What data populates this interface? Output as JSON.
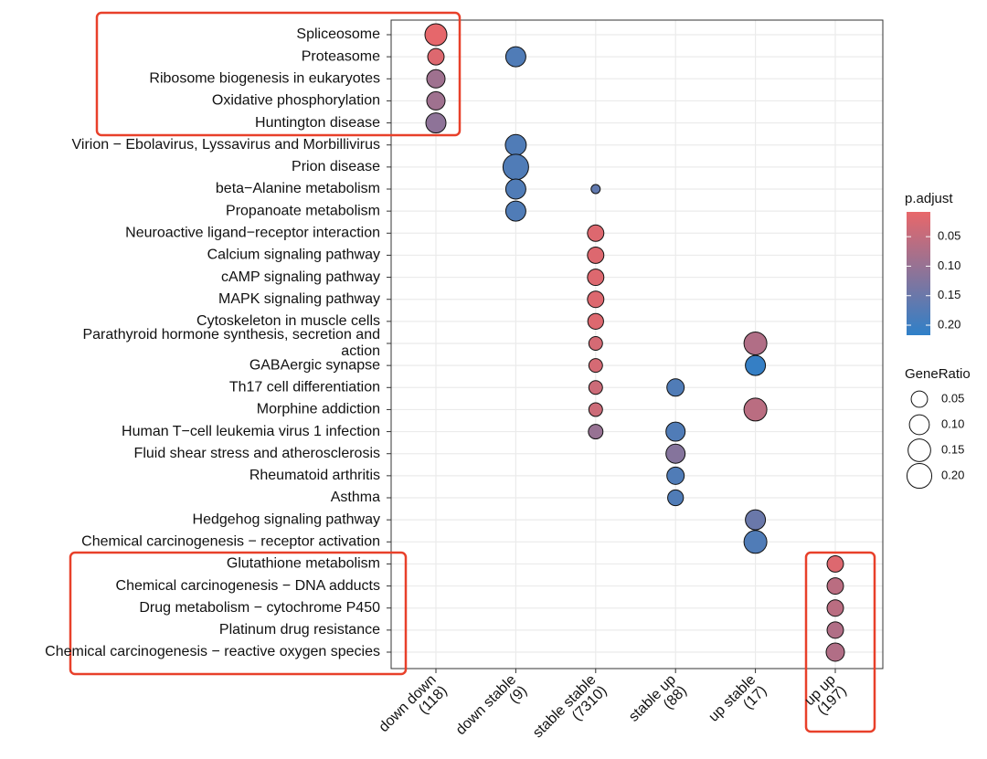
{
  "chart_data": {
    "type": "dot",
    "y_categories": [
      "Spliceosome",
      "Proteasome",
      "Ribosome biogenesis in eukaryotes",
      "Oxidative phosphorylation",
      "Huntington disease",
      "Virion − Ebolavirus, Lyssavirus and Morbillivirus",
      "Prion disease",
      "beta−Alanine metabolism",
      "Propanoate metabolism",
      "Neuroactive ligand−receptor interaction",
      "Calcium signaling pathway",
      "cAMP signaling pathway",
      "MAPK signaling pathway",
      "Cytoskeleton in muscle cells",
      [
        "Parathyroid hormone synthesis, secretion and",
        "action"
      ],
      "GABAergic synapse",
      "Th17 cell differentiation",
      "Morphine addiction",
      "Human T−cell leukemia virus 1 infection",
      "Fluid shear stress and atherosclerosis",
      "Rheumatoid arthritis",
      "Asthma",
      "Hedgehog signaling pathway",
      "Chemical carcinogenesis − receptor activation",
      "Glutathione metabolism",
      "Chemical carcinogenesis − DNA adducts",
      "Drug metabolism − cytochrome P450",
      "Platinum drug resistance",
      "Chemical carcinogenesis − reactive oxygen species"
    ],
    "x_categories": [
      [
        "down down",
        "(118)"
      ],
      [
        "down stable",
        "(9)"
      ],
      [
        "stable stable",
        "(7310)"
      ],
      [
        "stable up",
        "(88)"
      ],
      [
        "up stable",
        "(17)"
      ],
      [
        "up up",
        "(197)"
      ]
    ],
    "points": {
      "y": [
        0,
        1,
        1,
        2,
        3,
        4,
        5,
        6,
        7,
        7,
        8,
        9,
        10,
        11,
        12,
        13,
        14,
        14,
        15,
        15,
        16,
        16,
        17,
        17,
        18,
        18,
        19,
        20,
        21,
        22,
        23,
        24,
        25,
        26,
        27,
        28
      ],
      "x": [
        0,
        0,
        1,
        0,
        0,
        0,
        1,
        1,
        1,
        2,
        1,
        2,
        2,
        2,
        2,
        2,
        2,
        4,
        2,
        4,
        2,
        3,
        2,
        4,
        2,
        3,
        3,
        3,
        3,
        4,
        4,
        5,
        5,
        5,
        5,
        5
      ],
      "p_adjust": [
        0.01,
        0.02,
        0.18,
        0.09,
        0.09,
        0.11,
        0.18,
        0.18,
        0.18,
        0.16,
        0.18,
        0.02,
        0.02,
        0.02,
        0.02,
        0.02,
        0.03,
        0.07,
        0.03,
        0.21,
        0.04,
        0.18,
        0.04,
        0.06,
        0.1,
        0.18,
        0.12,
        0.18,
        0.18,
        0.15,
        0.18,
        0.02,
        0.06,
        0.06,
        0.07,
        0.07
      ],
      "gene_ratio": [
        0.137,
        0.051,
        0.103,
        0.075,
        0.075,
        0.103,
        0.118,
        0.22,
        0.103,
        0.01,
        0.103,
        0.051,
        0.051,
        0.051,
        0.051,
        0.044,
        0.026,
        0.156,
        0.026,
        0.103,
        0.026,
        0.062,
        0.026,
        0.156,
        0.033,
        0.088,
        0.088,
        0.062,
        0.044,
        0.103,
        0.156,
        0.051,
        0.051,
        0.051,
        0.051,
        0.075
      ]
    },
    "color_legend": {
      "title": "p.adjust",
      "lim": [
        0.008,
        0.217
      ],
      "low": "#e8676a",
      "high": "#2f80c8",
      "ticks": [
        0.05,
        {
          "value": 0.1,
          "label": "0.10"
        },
        0.15,
        {
          "value": 0.2,
          "label": "0.20"
        }
      ]
    },
    "size_legend": {
      "title": "GeneRatio",
      "lim": [
        0.01,
        0.22
      ],
      "ticks": [
        0.05,
        {
          "value": 0.1,
          "label": "0.10"
        },
        0.15,
        {
          "value": 0.2,
          "label": "0.20"
        }
      ]
    },
    "grid": true
  }
}
